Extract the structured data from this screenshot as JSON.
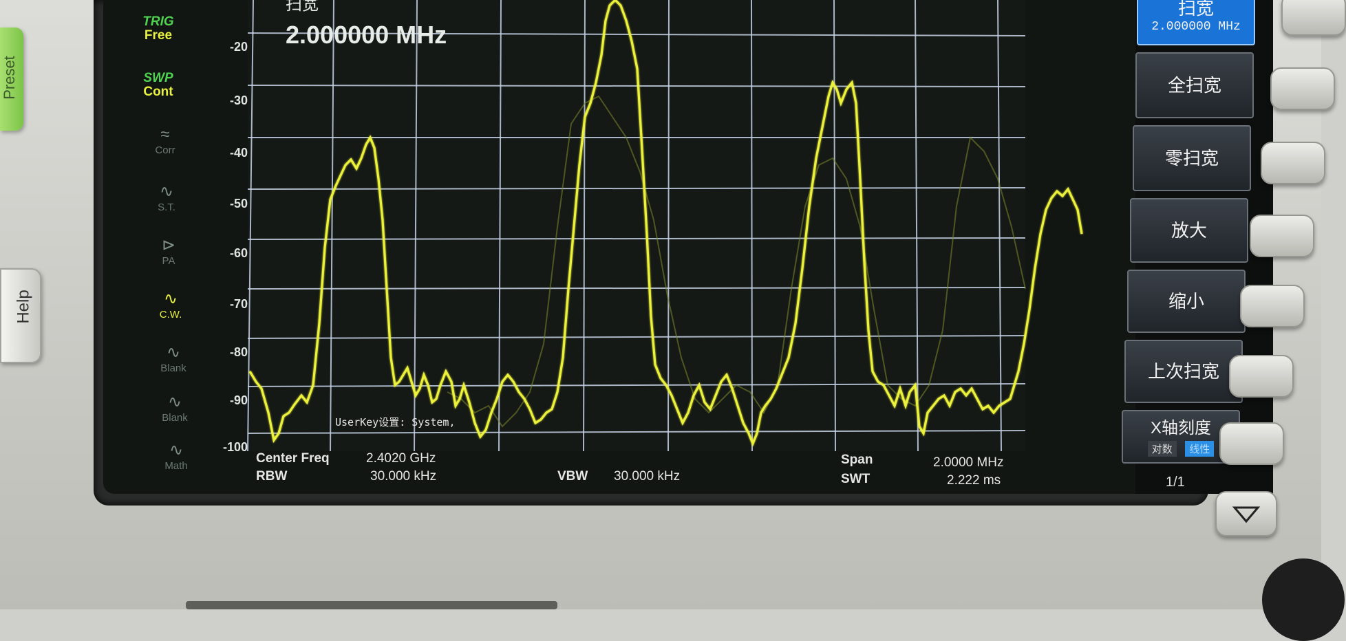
{
  "instrument": {
    "side_keys": {
      "help": "Help",
      "preset": "Preset"
    }
  },
  "status": {
    "trig_label": "TRIG",
    "trig_value": "Free",
    "swp_label": "SWP",
    "swp_value": "Cont"
  },
  "left_icons": [
    {
      "icon": "corr-icon",
      "label": "Corr",
      "glyph": "≈",
      "active": false
    },
    {
      "icon": "signal-tracking-icon",
      "label": "S.T.",
      "glyph": "∿",
      "active": false
    },
    {
      "icon": "preamp-icon",
      "label": "PA",
      "glyph": "⊳",
      "active": false
    },
    {
      "icon": "clear-write-icon",
      "label": "C.W.",
      "glyph": "∿",
      "active": true
    },
    {
      "icon": "blank-trace-icon",
      "label": "Blank",
      "glyph": "∿",
      "active": false
    },
    {
      "icon": "blank-trace-icon",
      "label": "Blank",
      "glyph": "∿",
      "active": false
    },
    {
      "icon": "math-icon",
      "label": "Math",
      "glyph": "∿",
      "active": false
    }
  ],
  "display": {
    "top_title_partial": "扫宽",
    "span_value": "2.000000 MHz",
    "y_ticks": [
      "-20",
      "-30",
      "-40",
      "-50",
      "-60",
      "-70",
      "-80",
      "-90",
      "-100"
    ],
    "userkey_text": "UserKey设置:   System,",
    "trace_color": "#e8f040"
  },
  "info": {
    "center_freq_label": "Center Freq",
    "center_freq_value": "2.4020 GHz",
    "rbw_label": "RBW",
    "rbw_value": "30.000 kHz",
    "vbw_label": "VBW",
    "vbw_value": "30.000 kHz",
    "span_label": "Span",
    "span_value": "2.0000 MHz",
    "swt_label": "SWT",
    "swt_value": "2.222 ms"
  },
  "softkeys": {
    "span": {
      "label": "扫宽",
      "value": "2.000000 MHz"
    },
    "full_span": "全扫宽",
    "zero_span": "零扫宽",
    "zoom_in": "放大",
    "zoom_out": "缩小",
    "last_span": "上次扫宽",
    "x_scale": {
      "label": "X轴刻度",
      "opt_log": "对数",
      "opt_lin": "线性"
    },
    "page": "1/1"
  }
}
